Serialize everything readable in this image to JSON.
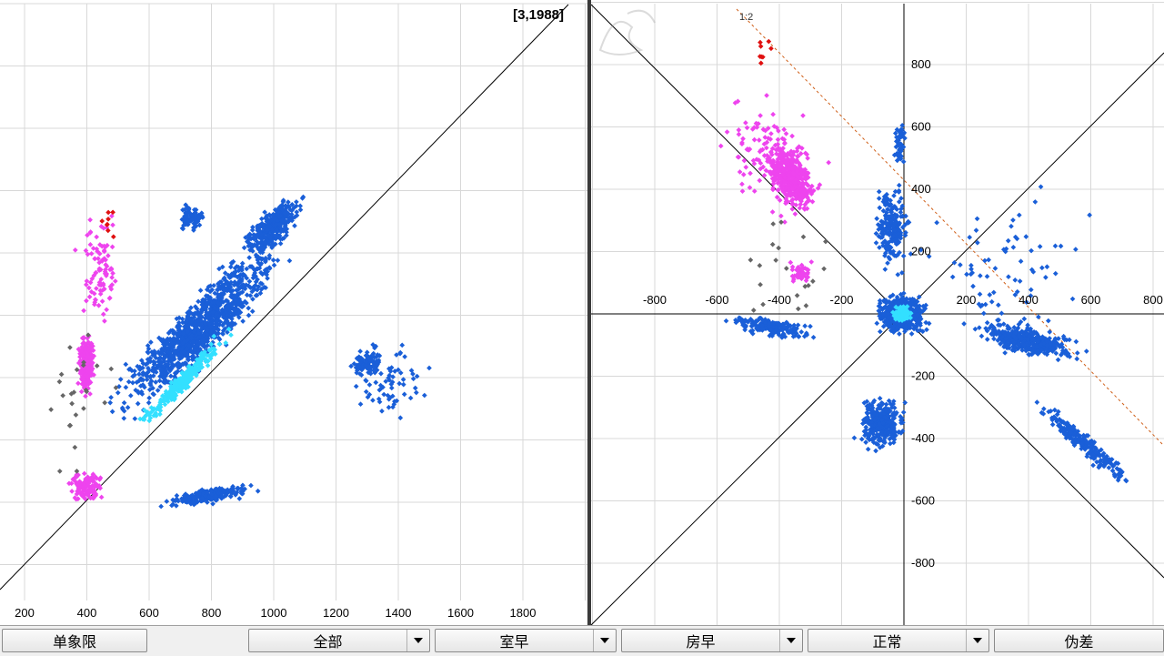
{
  "left_chart": {
    "coordinate_readout": "[3,1988]",
    "x_ticks": [
      "200",
      "400",
      "600",
      "800",
      "1000",
      "1200",
      "1400",
      "1600",
      "1800"
    ]
  },
  "right_chart": {
    "ratio_label": "1:2",
    "x_ticks": [
      "-800",
      "-600",
      "-400",
      "-200",
      "200",
      "400",
      "600",
      "800"
    ],
    "y_ticks": [
      "800",
      "600",
      "400",
      "200",
      "-200",
      "-400",
      "-600",
      "-800"
    ]
  },
  "toolbar": {
    "single_quadrant": "单象限",
    "all": "全部",
    "atrial_premature": "室早",
    "ventricular_premature": "房早",
    "normal": "正常",
    "artifact": "伪差"
  },
  "colors": {
    "normal": "#1a5fd8",
    "dense_core": "#33e0ff",
    "premature": "#ee44ee",
    "artifact": "#666666",
    "highlight": "#e01010"
  },
  "watermark": "丁香园"
}
